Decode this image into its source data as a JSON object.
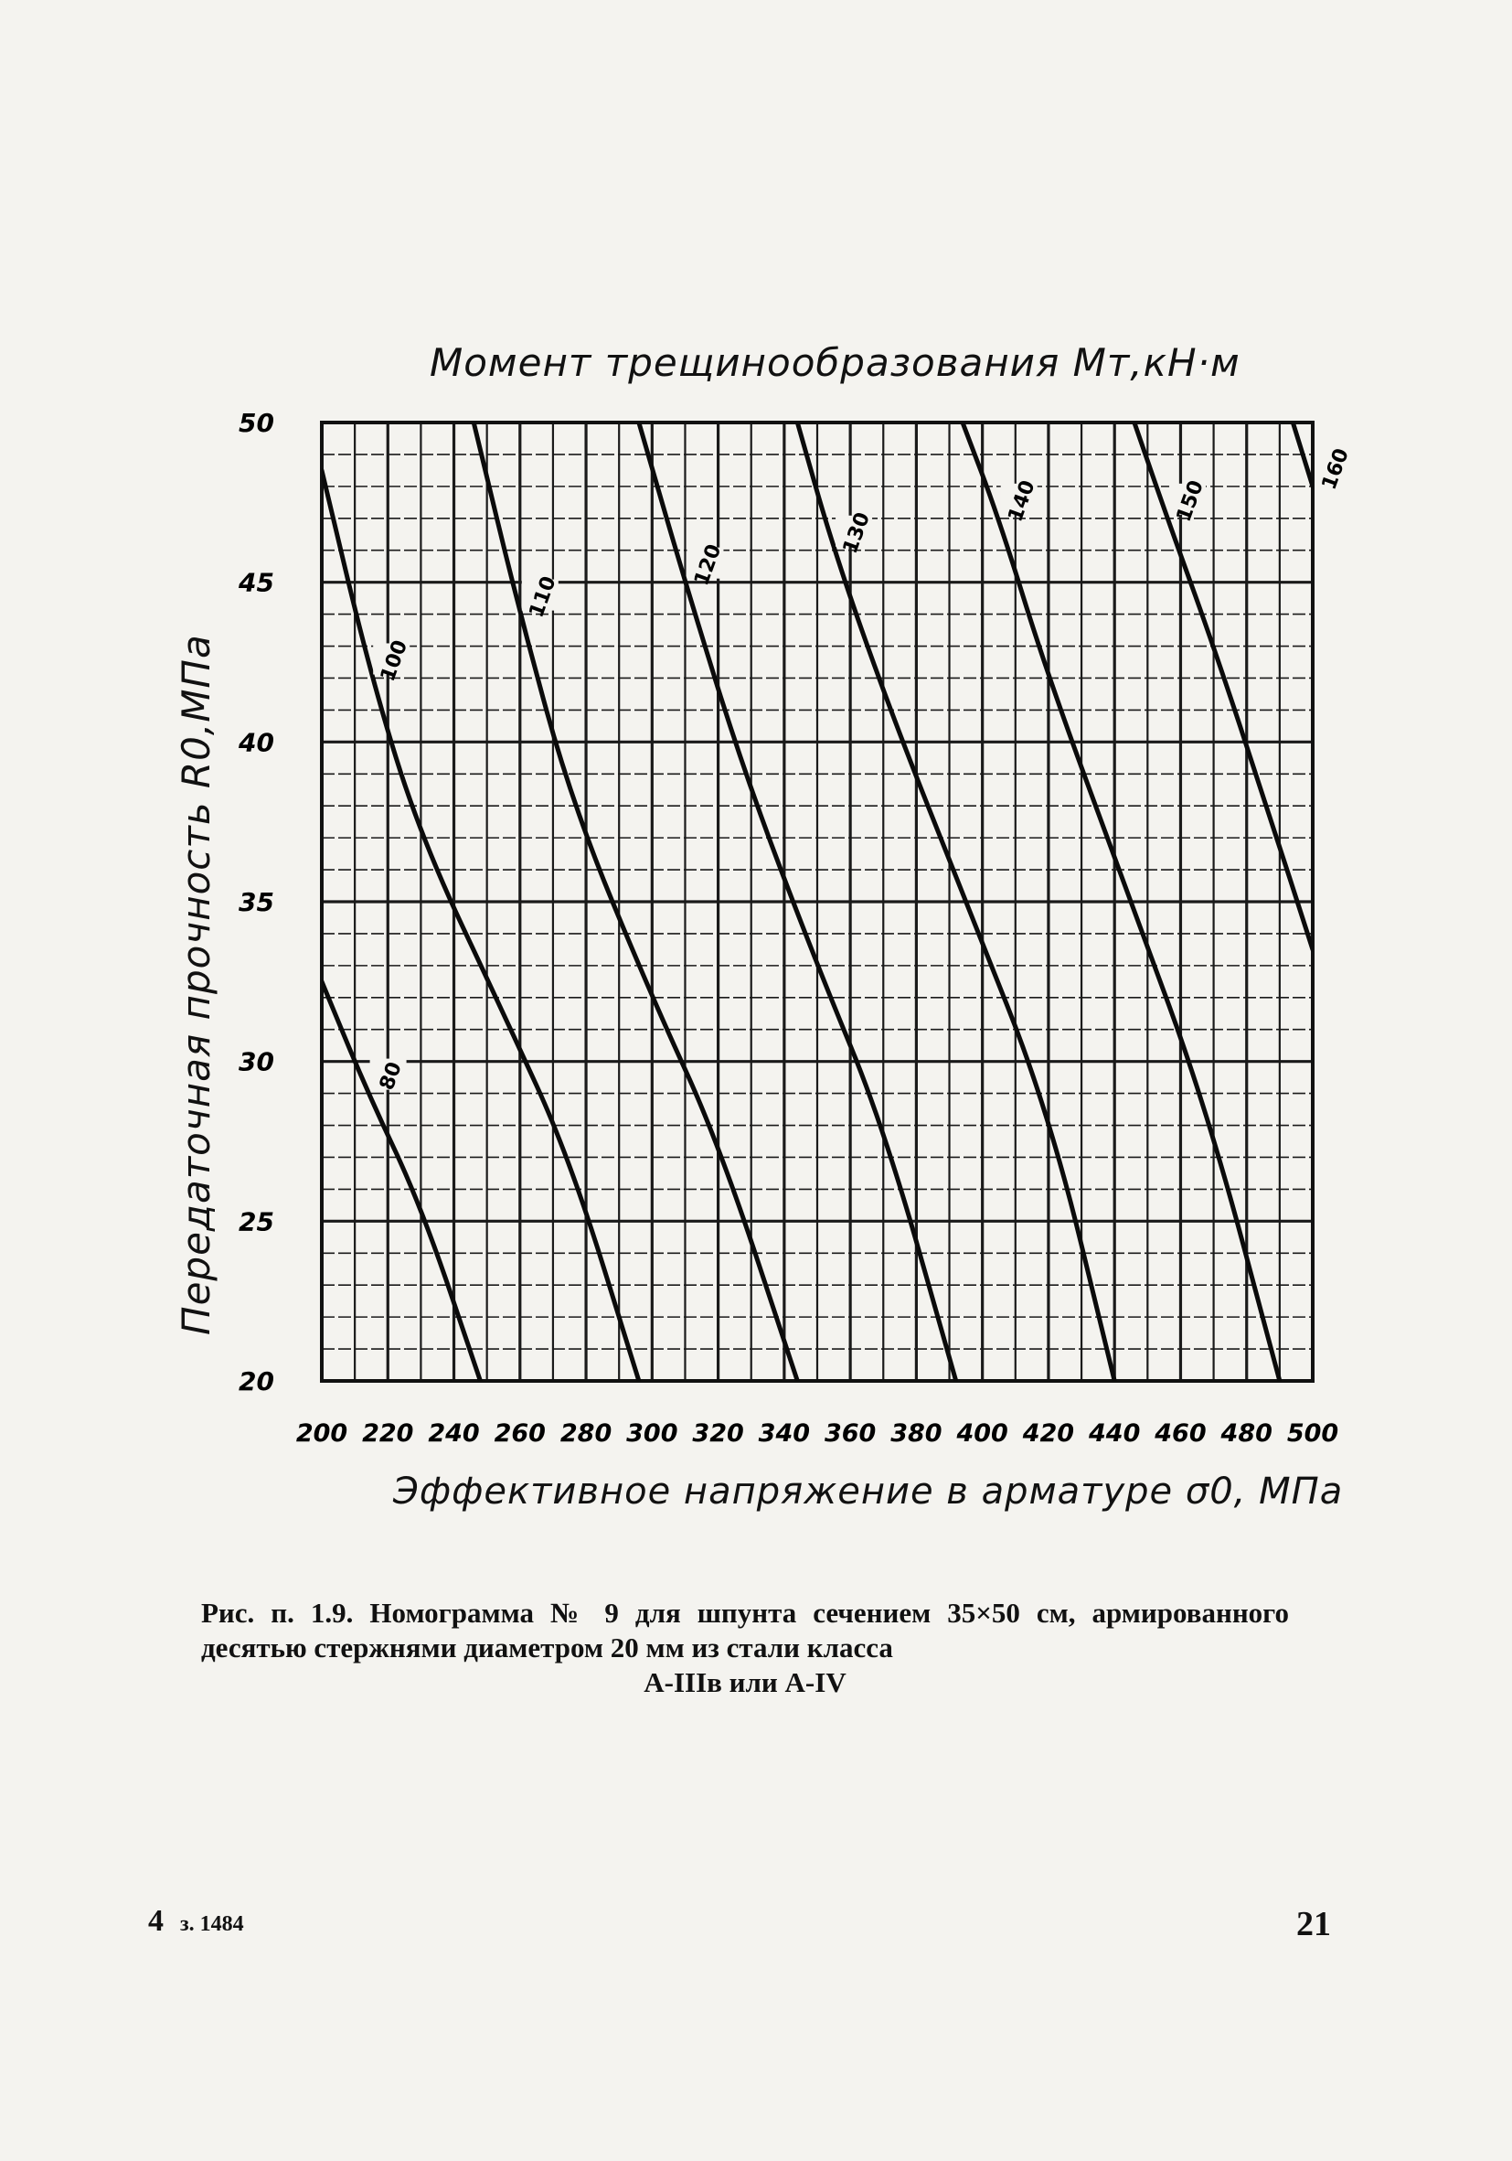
{
  "chart_data": {
    "type": "line",
    "title": "Момент трещинообразования Мт,кН·м",
    "xlabel": "Эффективное напряжение в арматуре σ0, МПа",
    "ylabel": "Передаточная прочность R0,МПа",
    "xlim": [
      200,
      500
    ],
    "ylim": [
      20,
      50
    ],
    "x_ticks": [
      "200",
      "220",
      "240",
      "260",
      "280",
      "300",
      "320",
      "340",
      "360",
      "380",
      "400",
      "420",
      "440",
      "460",
      "480",
      "500"
    ],
    "y_ticks": [
      "20",
      "25",
      "30",
      "35",
      "40",
      "45",
      "50"
    ],
    "grid": true,
    "series": [
      {
        "name": "80",
        "points": [
          [
            200,
            32.5
          ],
          [
            214,
            29
          ],
          [
            230,
            25.5
          ],
          [
            248,
            20
          ]
        ]
      },
      {
        "name": "100",
        "points": [
          [
            200,
            48.5
          ],
          [
            215,
            42
          ],
          [
            230,
            37
          ],
          [
            255,
            31.5
          ],
          [
            275,
            27
          ],
          [
            296,
            20
          ]
        ]
      },
      {
        "name": "110",
        "points": [
          [
            246,
            50
          ],
          [
            260,
            44
          ],
          [
            276,
            38
          ],
          [
            300,
            32
          ],
          [
            320,
            27.5
          ],
          [
            344,
            20
          ]
        ]
      },
      {
        "name": "120",
        "points": [
          [
            296,
            50
          ],
          [
            310,
            45
          ],
          [
            328,
            39
          ],
          [
            350,
            33
          ],
          [
            370,
            28
          ],
          [
            392,
            20
          ]
        ]
      },
      {
        "name": "130",
        "points": [
          [
            344,
            50
          ],
          [
            355,
            46
          ],
          [
            372,
            41
          ],
          [
            395,
            35
          ],
          [
            420,
            28.5
          ],
          [
            440,
            20
          ]
        ]
      },
      {
        "name": "140",
        "points": [
          [
            394,
            50
          ],
          [
            405,
            47
          ],
          [
            420,
            42
          ],
          [
            445,
            35
          ],
          [
            468,
            28.5
          ],
          [
            490,
            20
          ]
        ]
      },
      {
        "name": "150",
        "points": [
          [
            446,
            50
          ],
          [
            456,
            47
          ],
          [
            470,
            43
          ],
          [
            486,
            38
          ],
          [
            500,
            33.5
          ]
        ]
      },
      {
        "name": "160",
        "points": [
          [
            494,
            50
          ],
          [
            500,
            48
          ]
        ]
      }
    ]
  },
  "figure": {
    "top_title": "Момент трещинообразования Мт,кН·м",
    "x_axis_title": "Эффективное напряжение в арматуре σ0, МПа",
    "y_axis_title": "Передаточная прочность R0,МПа"
  },
  "caption": {
    "text": "Рис. п. 1.9. Номограмма № 9 для шпунта сечением 35×50 см, армированного десятью стержнями диаметром 20 мм из стали класса",
    "last_line": "А-IIIв или А-IV"
  },
  "footer": {
    "left_number": "4",
    "left_code": "з. 1484",
    "page_number": "21"
  }
}
